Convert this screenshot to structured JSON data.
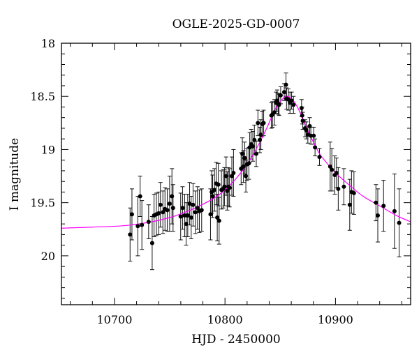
{
  "chart_data": {
    "type": "scatter",
    "title": "OGLE-2025-GD-0007",
    "xlabel": "HJD - 2450000",
    "ylabel": "I magnitude",
    "xlim": [
      10652,
      10968
    ],
    "ylim": [
      18,
      20.46
    ],
    "y_inverted": true,
    "x_ticks": [
      10700,
      10800,
      10900
    ],
    "x_tick_labels": [
      "10700",
      "10800",
      "10900"
    ],
    "x_minor_step": 20,
    "y_ticks": [
      18,
      18.5,
      19,
      19.5,
      20
    ],
    "y_tick_labels": [
      "18",
      "18.5",
      "19",
      "19.5",
      "20"
    ],
    "y_minor_step": 0.1,
    "grid": false,
    "colors": {
      "points": "#000000",
      "model": "#ff00ff"
    },
    "series": [
      {
        "kind": "points_with_errorbars",
        "points": [
          [
            10714.1,
            19.8,
            0.25
          ],
          [
            10715.8,
            19.61,
            0.24
          ],
          [
            10721.1,
            19.72,
            0.28
          ],
          [
            10723.2,
            19.44,
            0.19
          ],
          [
            10724.8,
            19.71,
            0.23
          ],
          [
            10730.9,
            19.68,
            0.16
          ],
          [
            10734.1,
            19.88,
            0.25
          ],
          [
            10735.8,
            19.62,
            0.2
          ],
          [
            10737.9,
            19.61,
            0.2
          ],
          [
            10740.0,
            19.6,
            0.2
          ],
          [
            10741.6,
            19.52,
            0.21
          ],
          [
            10743.8,
            19.59,
            0.2
          ],
          [
            10745.7,
            19.56,
            0.2
          ],
          [
            10747.8,
            19.57,
            0.2
          ],
          [
            10749.9,
            19.51,
            0.26
          ],
          [
            10752.0,
            19.44,
            0.26
          ],
          [
            10753.0,
            19.55,
            0.22
          ],
          [
            10759.9,
            19.63,
            0.22
          ],
          [
            10761.6,
            19.55,
            0.2
          ],
          [
            10763.5,
            19.62,
            0.2
          ],
          [
            10764.8,
            19.7,
            0.2
          ],
          [
            10766.3,
            19.62,
            0.2
          ],
          [
            10768.0,
            19.51,
            0.2
          ],
          [
            10769.4,
            19.64,
            0.2
          ],
          [
            10771.1,
            19.52,
            0.2
          ],
          [
            10773.2,
            19.59,
            0.2
          ],
          [
            10775.1,
            19.55,
            0.2
          ],
          [
            10776.8,
            19.58,
            0.2
          ],
          [
            10778.9,
            19.57,
            0.2
          ],
          [
            10786.9,
            19.61,
            0.24
          ],
          [
            10788.0,
            19.4,
            0.2
          ],
          [
            10788.8,
            19.44,
            0.2
          ],
          [
            10790.5,
            19.38,
            0.2
          ],
          [
            10792.0,
            19.32,
            0.2
          ],
          [
            10793.0,
            19.64,
            0.22
          ],
          [
            10794.0,
            19.33,
            0.2
          ],
          [
            10794.7,
            19.67,
            0.22
          ],
          [
            10796.8,
            19.38,
            0.18
          ],
          [
            10798.4,
            19.37,
            0.18
          ],
          [
            10799.5,
            19.35,
            0.18
          ],
          [
            10801.0,
            19.25,
            0.18
          ],
          [
            10802.0,
            19.39,
            0.18
          ],
          [
            10803.1,
            19.35,
            0.18
          ],
          [
            10804.1,
            19.36,
            0.18
          ],
          [
            10806.2,
            19.25,
            0.18
          ],
          [
            10807.7,
            19.22,
            0.22
          ],
          [
            10814.6,
            19.18,
            0.15
          ],
          [
            10815.7,
            19.04,
            0.15
          ],
          [
            10816.7,
            19.16,
            0.15
          ],
          [
            10817.8,
            19.08,
            0.15
          ],
          [
            10818.9,
            19.25,
            0.15
          ],
          [
            10819.9,
            19.14,
            0.15
          ],
          [
            10821.6,
            19.13,
            0.15
          ],
          [
            10822.4,
            18.98,
            0.14
          ],
          [
            10823.7,
            18.95,
            0.14
          ],
          [
            10825.2,
            18.97,
            0.14
          ],
          [
            10826.6,
            18.91,
            0.14
          ],
          [
            10828.3,
            19.04,
            0.12
          ],
          [
            10829.8,
            18.75,
            0.12
          ],
          [
            10831.5,
            18.91,
            0.12
          ],
          [
            10832.5,
            18.86,
            0.14
          ],
          [
            10833.6,
            18.76,
            0.12
          ],
          [
            10835.0,
            18.75,
            0.12
          ],
          [
            10842.0,
            18.68,
            0.12
          ],
          [
            10843.0,
            18.67,
            0.12
          ],
          [
            10844.7,
            18.65,
            0.12
          ],
          [
            10846.2,
            18.56,
            0.1
          ],
          [
            10847.2,
            18.54,
            0.1
          ],
          [
            10848.3,
            18.57,
            0.1
          ],
          [
            10848.9,
            18.58,
            0.1
          ],
          [
            10850.4,
            18.49,
            0.08
          ],
          [
            10853.6,
            18.46,
            0.08
          ],
          [
            10855.2,
            18.39,
            0.11
          ],
          [
            10855.7,
            18.52,
            0.1
          ],
          [
            10857.4,
            18.53,
            0.1
          ],
          [
            10858.8,
            18.56,
            0.1
          ],
          [
            10860.3,
            18.54,
            0.08
          ],
          [
            10862.0,
            18.58,
            0.08
          ],
          [
            10869.3,
            18.61,
            0.08
          ],
          [
            10869.9,
            18.68,
            0.08
          ],
          [
            10870.4,
            18.73,
            0.08
          ],
          [
            10872.5,
            18.8,
            0.08
          ],
          [
            10873.6,
            18.82,
            0.08
          ],
          [
            10875.0,
            18.86,
            0.08
          ],
          [
            10876.7,
            18.78,
            0.08
          ],
          [
            10877.7,
            18.87,
            0.08
          ],
          [
            10880.3,
            18.87,
            0.08
          ],
          [
            10881.5,
            18.98,
            0.08
          ],
          [
            10885.5,
            19.07,
            0.08
          ],
          [
            10895.2,
            19.16,
            0.23
          ],
          [
            10896.7,
            19.19,
            0.2
          ],
          [
            10899.4,
            19.24,
            0.18
          ],
          [
            10900.9,
            19.22,
            0.14
          ],
          [
            10902.5,
            19.37,
            0.2
          ],
          [
            10907.6,
            19.35,
            0.17
          ],
          [
            10912.9,
            19.52,
            0.24
          ],
          [
            10914.5,
            19.4,
            0.2
          ],
          [
            10916.7,
            19.41,
            0.2
          ],
          [
            10936.6,
            19.5,
            0.17
          ],
          [
            10938.3,
            19.62,
            0.25
          ],
          [
            10943.5,
            19.53,
            0.24
          ],
          [
            10953.4,
            19.58,
            0.35
          ],
          [
            10957.6,
            19.69,
            0.32
          ]
        ]
      },
      {
        "kind": "model_curve",
        "points": [
          [
            10652,
            19.74
          ],
          [
            10680,
            19.73
          ],
          [
            10715,
            19.71
          ],
          [
            10750,
            19.64
          ],
          [
            10779,
            19.52
          ],
          [
            10800,
            19.38
          ],
          [
            10820,
            19.14
          ],
          [
            10835,
            18.86
          ],
          [
            10845,
            18.63
          ],
          [
            10850,
            18.55
          ],
          [
            10855,
            18.5
          ],
          [
            10860,
            18.52
          ],
          [
            10865,
            18.59
          ],
          [
            10870,
            18.7
          ],
          [
            10875,
            18.82
          ],
          [
            10880,
            18.93
          ],
          [
            10885,
            19.03
          ],
          [
            10890,
            19.1
          ],
          [
            10900,
            19.22
          ],
          [
            10912,
            19.33
          ],
          [
            10925,
            19.44
          ],
          [
            10940,
            19.53
          ],
          [
            10955,
            19.62
          ],
          [
            10968,
            19.68
          ]
        ]
      }
    ]
  }
}
